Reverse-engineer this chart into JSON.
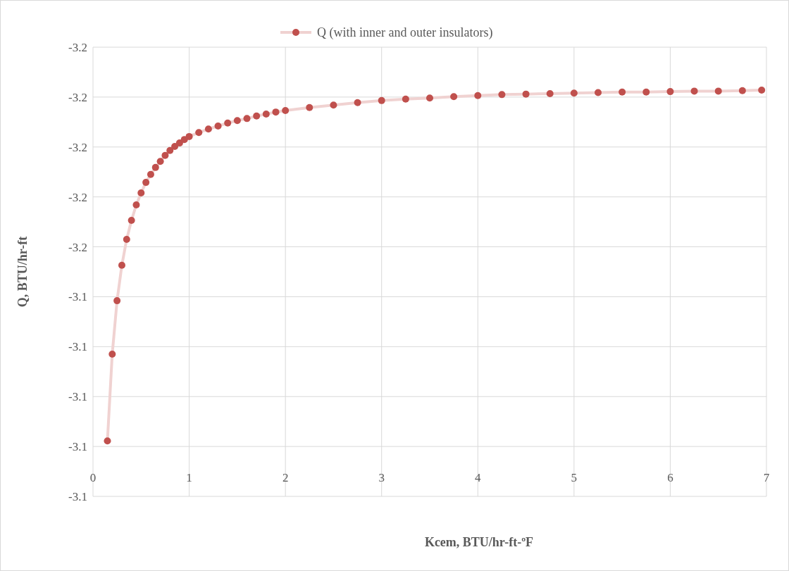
{
  "chart_data": {
    "type": "line",
    "xlabel": "Kcem, BTU/hr-ft-ºF",
    "ylabel": "Q, BTU/hr-ft",
    "x": [
      0.15,
      0.2,
      0.25,
      0.3,
      0.35,
      0.4,
      0.45,
      0.5,
      0.55,
      0.6,
      0.65,
      0.7,
      0.75,
      0.8,
      0.85,
      0.9,
      0.95,
      1.0,
      1.1,
      1.2,
      1.3,
      1.4,
      1.5,
      1.6,
      1.7,
      1.8,
      1.9,
      2.0,
      2.25,
      2.5,
      2.75,
      3.0,
      3.25,
      3.5,
      3.75,
      4.0,
      4.25,
      4.5,
      4.75,
      5.0,
      5.25,
      5.5,
      5.75,
      6.0,
      6.25,
      6.5,
      6.75,
      6.95
    ],
    "series": [
      {
        "name": "Q (with inner  and outer insulators)",
        "color": "#c0504d",
        "values": [
          -3.1111,
          -3.1285,
          -3.1392,
          -3.1463,
          -3.1515,
          -3.1553,
          -3.1584,
          -3.1608,
          -3.1629,
          -3.1645,
          -3.1659,
          -3.1671,
          -3.1683,
          -3.1693,
          -3.1701,
          -3.1708,
          -3.1715,
          -3.1721,
          -3.1729,
          -3.1736,
          -3.1742,
          -3.1748,
          -3.1753,
          -3.1757,
          -3.1762,
          -3.1766,
          -3.177,
          -3.1773,
          -3.1779,
          -3.1784,
          -3.1789,
          -3.1793,
          -3.1796,
          -3.1798,
          -3.1801,
          -3.1803,
          -3.1805,
          -3.1806,
          -3.1807,
          -3.1808,
          -3.1809,
          -3.181,
          -3.181,
          -3.1811,
          -3.1812,
          -3.1812,
          -3.1813,
          -3.1814
        ]
      }
    ],
    "xlim": [
      0,
      7
    ],
    "xticks": [
      0,
      1,
      2,
      3,
      4,
      5,
      6,
      7
    ],
    "ylim": [
      -3.1,
      -3.19
    ],
    "yticks": [
      {
        "value": -3.19,
        "label": "-3.2"
      },
      {
        "value": -3.18,
        "label": "-3.2"
      },
      {
        "value": -3.17,
        "label": "-3.2"
      },
      {
        "value": -3.16,
        "label": "-3.2"
      },
      {
        "value": -3.15,
        "label": "-3.2"
      },
      {
        "value": -3.14,
        "label": "-3.1"
      },
      {
        "value": -3.13,
        "label": "-3.1"
      },
      {
        "value": -3.12,
        "label": "-3.1"
      },
      {
        "value": -3.11,
        "label": "-3.1"
      },
      {
        "value": -3.1,
        "label": "-3.1"
      }
    ],
    "grid": true,
    "legend": "top",
    "marker": "circle",
    "line_style": "solid"
  }
}
